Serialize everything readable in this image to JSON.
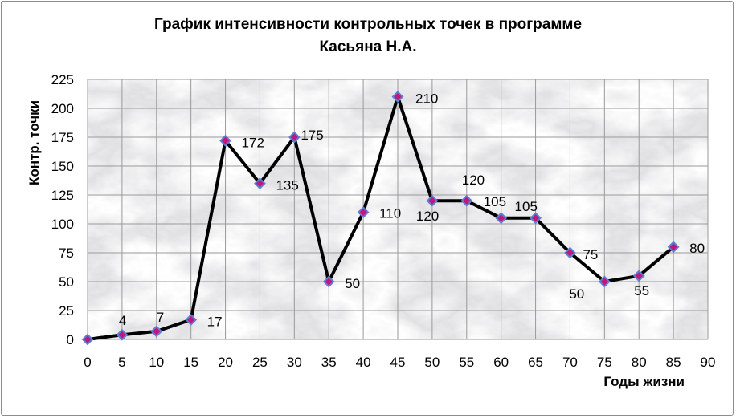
{
  "chart_data": {
    "type": "line",
    "title_line1": "График интенсивности контрольных точек в программе",
    "title_line2": "Касьяна Н.А.",
    "xlabel": "Годы жизни",
    "ylabel": "Контр. точки",
    "x_ticks": [
      0,
      5,
      10,
      15,
      20,
      25,
      30,
      35,
      40,
      45,
      50,
      55,
      60,
      65,
      70,
      75,
      80,
      85,
      90
    ],
    "y_ticks": [
      0,
      25,
      50,
      75,
      100,
      125,
      150,
      175,
      200,
      225
    ],
    "xlim": [
      0,
      90
    ],
    "ylim": [
      0,
      225
    ],
    "grid": true,
    "x": [
      0,
      5,
      10,
      15,
      20,
      25,
      30,
      35,
      40,
      45,
      50,
      55,
      60,
      65,
      70,
      75,
      80,
      85
    ],
    "values": [
      0,
      4,
      7,
      17,
      172,
      135,
      175,
      50,
      110,
      210,
      120,
      120,
      105,
      105,
      75,
      50,
      55,
      80
    ],
    "data_labels": [
      "",
      "4",
      "7",
      "17",
      "172",
      "135",
      "175",
      "50",
      "110",
      "210",
      "120",
      "120",
      "105",
      "105",
      "75",
      "50",
      "55",
      "80"
    ],
    "line_color": "#000000",
    "marker_fill": "#c0177a",
    "marker_edge": "#5b7fd6"
  }
}
